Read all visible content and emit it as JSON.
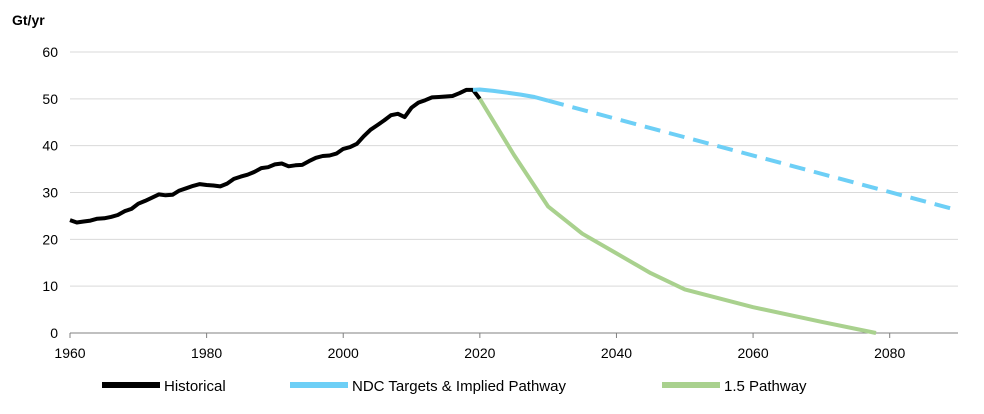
{
  "chart_data": {
    "type": "line",
    "ylabel": "Gt/yr",
    "xlim": [
      1960,
      2090
    ],
    "ylim": [
      0,
      60
    ],
    "x_ticks": [
      1960,
      1980,
      2000,
      2020,
      2040,
      2060,
      2080
    ],
    "y_ticks": [
      0,
      10,
      20,
      30,
      40,
      50,
      60
    ],
    "grid": "horizontal",
    "legend_position": "bottom",
    "series": [
      {
        "name": "Historical",
        "color": "#000000",
        "style": "solid",
        "points": [
          [
            1960,
            24.1
          ],
          [
            1961,
            23.6
          ],
          [
            1962,
            23.8
          ],
          [
            1963,
            24.0
          ],
          [
            1964,
            24.4
          ],
          [
            1965,
            24.5
          ],
          [
            1966,
            24.8
          ],
          [
            1967,
            25.2
          ],
          [
            1968,
            26.0
          ],
          [
            1969,
            26.5
          ],
          [
            1970,
            27.6
          ],
          [
            1971,
            28.2
          ],
          [
            1972,
            28.9
          ],
          [
            1973,
            29.6
          ],
          [
            1974,
            29.4
          ],
          [
            1975,
            29.5
          ],
          [
            1976,
            30.4
          ],
          [
            1977,
            30.9
          ],
          [
            1978,
            31.4
          ],
          [
            1979,
            31.8
          ],
          [
            1980,
            31.6
          ],
          [
            1981,
            31.5
          ],
          [
            1982,
            31.3
          ],
          [
            1983,
            31.9
          ],
          [
            1984,
            32.9
          ],
          [
            1985,
            33.4
          ],
          [
            1986,
            33.8
          ],
          [
            1987,
            34.4
          ],
          [
            1988,
            35.2
          ],
          [
            1989,
            35.4
          ],
          [
            1990,
            36.0
          ],
          [
            1991,
            36.2
          ],
          [
            1992,
            35.6
          ],
          [
            1993,
            35.8
          ],
          [
            1994,
            35.9
          ],
          [
            1995,
            36.7
          ],
          [
            1996,
            37.4
          ],
          [
            1997,
            37.8
          ],
          [
            1998,
            37.9
          ],
          [
            1999,
            38.3
          ],
          [
            2000,
            39.3
          ],
          [
            2001,
            39.7
          ],
          [
            2002,
            40.4
          ],
          [
            2003,
            42.0
          ],
          [
            2004,
            43.4
          ],
          [
            2005,
            44.4
          ],
          [
            2006,
            45.4
          ],
          [
            2007,
            46.5
          ],
          [
            2008,
            46.8
          ],
          [
            2009,
            46.1
          ],
          [
            2010,
            48.1
          ],
          [
            2011,
            49.2
          ],
          [
            2012,
            49.7
          ],
          [
            2013,
            50.3
          ],
          [
            2014,
            50.4
          ],
          [
            2015,
            50.5
          ],
          [
            2016,
            50.6
          ],
          [
            2017,
            51.2
          ],
          [
            2018,
            51.9
          ],
          [
            2019,
            51.9
          ],
          [
            2020,
            50.0
          ]
        ]
      },
      {
        "name": "NDC Targets & Implied Pathway",
        "color": "#6dcff6",
        "style": "solid",
        "points": [
          [
            2019,
            51.9
          ],
          [
            2020,
            52.0
          ],
          [
            2022,
            51.7
          ],
          [
            2024,
            51.3
          ],
          [
            2026,
            50.9
          ],
          [
            2028,
            50.4
          ],
          [
            2030,
            49.6
          ]
        ]
      },
      {
        "name": "NDC Targets & Implied Pathway (projection)",
        "color": "#6dcff6",
        "style": "dashed",
        "legend": false,
        "points": [
          [
            2030,
            49.6
          ],
          [
            2090,
            26.2
          ]
        ]
      },
      {
        "name": "1.5 Pathway",
        "color": "#a9d18e",
        "style": "solid",
        "points": [
          [
            2020,
            50.0
          ],
          [
            2025,
            38.0
          ],
          [
            2030,
            27.0
          ],
          [
            2035,
            21.2
          ],
          [
            2040,
            17.0
          ],
          [
            2045,
            12.8
          ],
          [
            2050,
            9.3
          ],
          [
            2060,
            5.5
          ],
          [
            2070,
            2.4
          ],
          [
            2078,
            0.0
          ]
        ]
      }
    ]
  }
}
